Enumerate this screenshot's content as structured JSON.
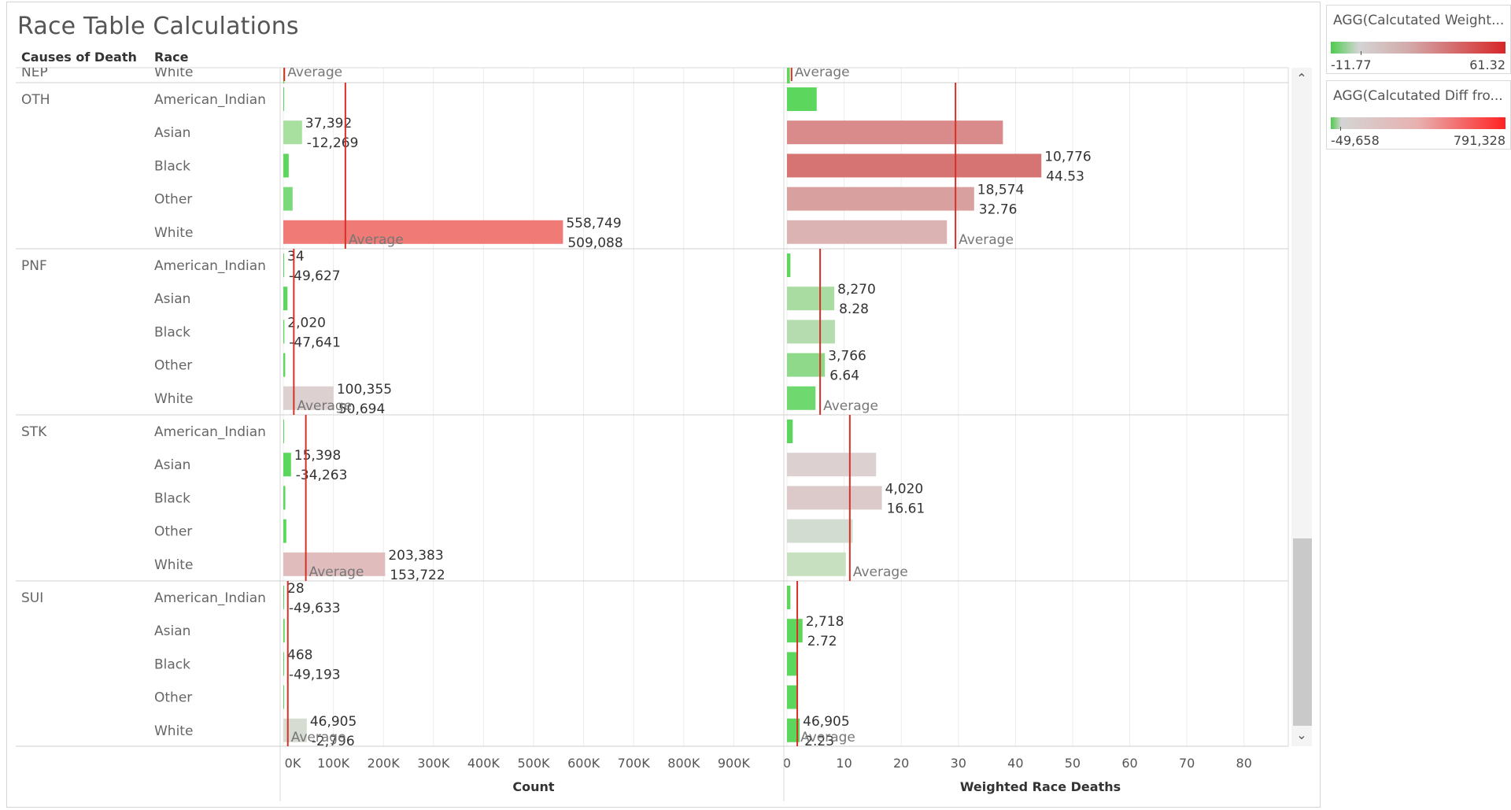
{
  "title": "Race Table Calculations",
  "headers": {
    "cause": "Causes of Death",
    "race": "Race"
  },
  "colors": {
    "green": "#5cd65c",
    "grey": "#dcd0d0",
    "red": "#e8625f",
    "ref_line": "#d73027"
  },
  "legends": [
    {
      "title": "AGG(Calcutated Weight...",
      "min": "-11.77",
      "max": "61.32"
    },
    {
      "title": "AGG(Calcutated Diff fro...",
      "min": "-49,658",
      "max": "791,328"
    }
  ],
  "chart_data": [
    {
      "type": "bar",
      "orientation": "horizontal",
      "xlabel": "Count",
      "xlim": [
        0,
        1000000
      ],
      "ticks": [
        "0K",
        "100K",
        "200K",
        "300K",
        "400K",
        "500K",
        "600K",
        "700K",
        "800K",
        "900K"
      ],
      "reference_label": "Average",
      "groups": [
        {
          "cause": "NEP",
          "partial": true,
          "average": 2000,
          "rows": [
            {
              "race": "White",
              "value": 2000,
              "color": "#5cd65c"
            }
          ]
        },
        {
          "cause": "OTH",
          "average": 124000,
          "rows": [
            {
              "race": "American_Indian",
              "value": 0,
              "color": "#5cd65c"
            },
            {
              "race": "Asian",
              "value": 37392,
              "color": "#a8e0a0",
              "label1": "37,392",
              "label2": "-12,269"
            },
            {
              "race": "Black",
              "value": 10776,
              "color": "#5cd65c"
            },
            {
              "race": "Other",
              "value": 18574,
              "color": "#7bd97b"
            },
            {
              "race": "White",
              "value": 558749,
              "color": "#f07a75",
              "label1": "558,749",
              "label2": "509,088"
            }
          ]
        },
        {
          "cause": "PNF",
          "average": 21000,
          "rows": [
            {
              "race": "American_Indian",
              "value": 34,
              "color": "#5cd65c",
              "label1": "34",
              "label2": "-49,627"
            },
            {
              "race": "Asian",
              "value": 8270,
              "color": "#5cd65c"
            },
            {
              "race": "Black",
              "value": 2020,
              "color": "#5cd65c",
              "label1": "2,020",
              "label2": "-47,641"
            },
            {
              "race": "Other",
              "value": 3766,
              "color": "#5cd65c"
            },
            {
              "race": "White",
              "value": 100355,
              "color": "#dcd0d0",
              "label1": "100,355",
              "label2": "50,694"
            }
          ]
        },
        {
          "cause": "STK",
          "average": 45000,
          "rows": [
            {
              "race": "American_Indian",
              "value": 0,
              "color": "#5cd65c"
            },
            {
              "race": "Asian",
              "value": 15398,
              "color": "#5cd65c",
              "label1": "15,398",
              "label2": "-34,263"
            },
            {
              "race": "Black",
              "value": 4020,
              "color": "#5cd65c"
            },
            {
              "race": "Other",
              "value": 6000,
              "color": "#5cd65c"
            },
            {
              "race": "White",
              "value": 203383,
              "color": "#e0bcbc",
              "label1": "203,383",
              "label2": "153,722"
            }
          ]
        },
        {
          "cause": "SUI",
          "average": 9000,
          "rows": [
            {
              "race": "American_Indian",
              "value": 28,
              "color": "#5cd65c",
              "label1": "28",
              "label2": "-49,633"
            },
            {
              "race": "Asian",
              "value": 2718,
              "color": "#5cd65c"
            },
            {
              "race": "Black",
              "value": 468,
              "color": "#5cd65c",
              "label1": "468",
              "label2": "-49,193"
            },
            {
              "race": "Other",
              "value": 500,
              "color": "#5cd65c"
            },
            {
              "race": "White",
              "value": 46905,
              "color": "#d6dcd2",
              "label1": "46,905",
              "label2": "-2,796"
            }
          ]
        }
      ]
    },
    {
      "type": "bar",
      "orientation": "horizontal",
      "xlabel": "Weighted Race Deaths",
      "xlim": [
        0,
        85
      ],
      "ticks": [
        "0",
        "10",
        "20",
        "30",
        "40",
        "50",
        "60",
        "70",
        "80"
      ],
      "reference_label": "Average",
      "groups": [
        {
          "cause": "NEP",
          "partial": true,
          "average": 0.8,
          "rows": [
            {
              "race": "White",
              "value": 0.5,
              "color": "#5cd65c"
            }
          ]
        },
        {
          "cause": "OTH",
          "average": 29.5,
          "rows": [
            {
              "race": "American_Indian",
              "value": 5.2,
              "color": "#5cd65c"
            },
            {
              "race": "Asian",
              "value": 37.8,
              "color": "#d98a8a"
            },
            {
              "race": "Black",
              "value": 44.53,
              "color": "#d67474",
              "label1": "10,776",
              "label2": "44.53"
            },
            {
              "race": "Other",
              "value": 32.76,
              "color": "#d9a0a0",
              "label1": "18,574",
              "label2": "32.76"
            },
            {
              "race": "White",
              "value": 28.0,
              "color": "#dcb3b3"
            }
          ]
        },
        {
          "cause": "PNF",
          "average": 5.8,
          "rows": [
            {
              "race": "American_Indian",
              "value": 0.6,
              "color": "#5cd65c"
            },
            {
              "race": "Asian",
              "value": 8.28,
              "color": "#a8dca0",
              "label1": "8,270",
              "label2": "8.28"
            },
            {
              "race": "Black",
              "value": 8.4,
              "color": "#b4dcae"
            },
            {
              "race": "Other",
              "value": 6.64,
              "color": "#8fd98a",
              "label1": "3,766",
              "label2": "6.64"
            },
            {
              "race": "White",
              "value": 5.0,
              "color": "#6fd96f"
            }
          ]
        },
        {
          "cause": "STK",
          "average": 11.0,
          "rows": [
            {
              "race": "American_Indian",
              "value": 1.0,
              "color": "#5cd65c"
            },
            {
              "race": "Asian",
              "value": 15.6,
              "color": "#dcd0d0"
            },
            {
              "race": "Black",
              "value": 16.61,
              "color": "#dccaca",
              "label1": "4,020",
              "label2": "16.61"
            },
            {
              "race": "Other",
              "value": 11.5,
              "color": "#d2dcd0"
            },
            {
              "race": "White",
              "value": 10.3,
              "color": "#c6e0c0"
            }
          ]
        },
        {
          "cause": "SUI",
          "average": 1.8,
          "rows": [
            {
              "race": "American_Indian",
              "value": 0.6,
              "color": "#5cd65c"
            },
            {
              "race": "Asian",
              "value": 2.72,
              "color": "#5cd65c",
              "label1": "2,718",
              "label2": "2.72"
            },
            {
              "race": "Black",
              "value": 1.8,
              "color": "#5cd65c"
            },
            {
              "race": "Other",
              "value": 1.8,
              "color": "#5cd65c"
            },
            {
              "race": "White",
              "value": 2.23,
              "color": "#5cd65c",
              "label1": "46,905",
              "label2": "2.23"
            }
          ]
        }
      ]
    }
  ]
}
